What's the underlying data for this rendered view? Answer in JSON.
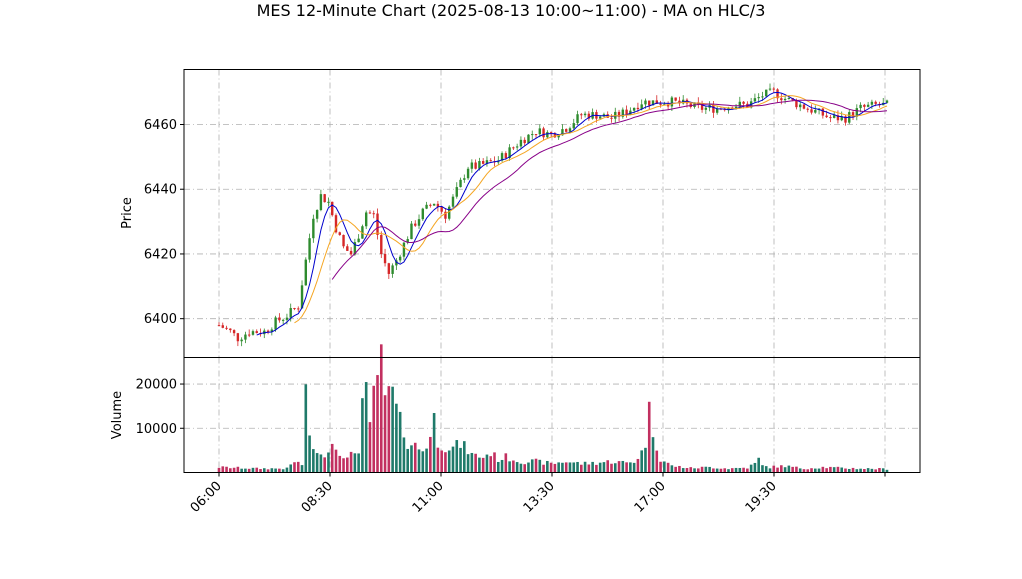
{
  "chart_data": {
    "type": "candlestick",
    "title": "MES 12-Minute Chart (2025-08-13 10:00~11:00) - MA on HLC/3",
    "price_panel": {
      "ylabel": "Price",
      "ylim": [
        6388,
        6477
      ],
      "yticks": [
        "6400",
        "6420",
        "6440",
        "6460"
      ],
      "grid": true
    },
    "volume_panel": {
      "ylabel": "Volume",
      "ylim": [
        0,
        26000
      ],
      "yticks": [
        "10000",
        "20000"
      ],
      "grid": true
    },
    "x_axis": {
      "tick_labels": [
        "06:00",
        "08:30",
        "11:00",
        "13:30",
        "17:00",
        "19:30",
        ""
      ],
      "tick_rotation": 45
    },
    "price_anchors": [
      [
        0,
        6398
      ],
      [
        3,
        6396
      ],
      [
        5,
        6394
      ],
      [
        8,
        6396
      ],
      [
        12,
        6396
      ],
      [
        15,
        6399
      ],
      [
        18,
        6401
      ],
      [
        21,
        6404
      ],
      [
        23,
        6418
      ],
      [
        25,
        6432
      ],
      [
        27,
        6438
      ],
      [
        29,
        6436
      ],
      [
        31,
        6428
      ],
      [
        33,
        6422
      ],
      [
        35,
        6420
      ],
      [
        37,
        6426
      ],
      [
        39,
        6433
      ],
      [
        41,
        6432
      ],
      [
        43,
        6420
      ],
      [
        45,
        6414
      ],
      [
        47,
        6418
      ],
      [
        49,
        6423
      ],
      [
        51,
        6428
      ],
      [
        54,
        6433
      ],
      [
        57,
        6436
      ],
      [
        60,
        6432
      ],
      [
        62,
        6437
      ],
      [
        64,
        6442
      ],
      [
        66,
        6447
      ],
      [
        68,
        6447
      ],
      [
        71,
        6448
      ],
      [
        74,
        6449
      ],
      [
        77,
        6452
      ],
      [
        80,
        6455
      ],
      [
        84,
        6458
      ],
      [
        88,
        6457
      ],
      [
        92,
        6459
      ],
      [
        96,
        6463
      ],
      [
        100,
        6463
      ],
      [
        104,
        6462
      ],
      [
        108,
        6464
      ],
      [
        112,
        6467
      ],
      [
        116,
        6467
      ],
      [
        120,
        6467
      ],
      [
        124,
        6466
      ],
      [
        128,
        6465
      ],
      [
        132,
        6465
      ],
      [
        136,
        6466
      ],
      [
        140,
        6466
      ],
      [
        144,
        6469
      ],
      [
        147,
        6470
      ],
      [
        150,
        6468
      ],
      [
        154,
        6466
      ],
      [
        158,
        6464
      ],
      [
        162,
        6462
      ],
      [
        166,
        6462
      ],
      [
        170,
        6465
      ],
      [
        174,
        6466
      ],
      [
        177,
        6466
      ]
    ],
    "volume_anchors": [
      [
        0,
        1200
      ],
      [
        10,
        900
      ],
      [
        18,
        900
      ],
      [
        20,
        2500
      ],
      [
        22,
        1800
      ],
      [
        23,
        16000
      ],
      [
        24,
        8500
      ],
      [
        25,
        6000
      ],
      [
        26,
        4000
      ],
      [
        27,
        3500
      ],
      [
        30,
        6500
      ],
      [
        32,
        5000
      ],
      [
        34,
        3000
      ],
      [
        37,
        5500
      ],
      [
        38,
        16000
      ],
      [
        39,
        17000
      ],
      [
        40,
        9500
      ],
      [
        41,
        18000
      ],
      [
        42,
        23000
      ],
      [
        43,
        24000
      ],
      [
        44,
        15000
      ],
      [
        45,
        19000
      ],
      [
        46,
        17000
      ],
      [
        47,
        14000
      ],
      [
        48,
        11000
      ],
      [
        49,
        9500
      ],
      [
        50,
        7000
      ],
      [
        52,
        6000
      ],
      [
        54,
        5000
      ],
      [
        55,
        6500
      ],
      [
        56,
        8000
      ],
      [
        57,
        12000
      ],
      [
        58,
        7000
      ],
      [
        60,
        6000
      ],
      [
        62,
        5500
      ],
      [
        64,
        6500
      ],
      [
        66,
        5000
      ],
      [
        67,
        4000
      ],
      [
        70,
        3500
      ],
      [
        72,
        4500
      ],
      [
        74,
        3000
      ],
      [
        76,
        3500
      ],
      [
        80,
        2500
      ],
      [
        84,
        2500
      ],
      [
        88,
        2000
      ],
      [
        92,
        2500
      ],
      [
        96,
        2000
      ],
      [
        100,
        2200
      ],
      [
        104,
        2500
      ],
      [
        108,
        2200
      ],
      [
        110,
        2500
      ],
      [
        112,
        4500
      ],
      [
        113,
        7000
      ],
      [
        114,
        13500
      ],
      [
        115,
        9500
      ],
      [
        116,
        6500
      ],
      [
        117,
        3000
      ],
      [
        118,
        2500
      ],
      [
        120,
        1500
      ],
      [
        125,
        1000
      ],
      [
        130,
        1200
      ],
      [
        135,
        900
      ],
      [
        140,
        1100
      ],
      [
        142,
        2000
      ],
      [
        143,
        3000
      ],
      [
        144,
        1500
      ],
      [
        146,
        1200
      ],
      [
        150,
        1500
      ],
      [
        152,
        1200
      ],
      [
        155,
        900
      ],
      [
        160,
        1200
      ],
      [
        165,
        1000
      ],
      [
        170,
        900
      ],
      [
        177,
        800
      ]
    ],
    "series": [
      {
        "role": "moving-average-fast",
        "color": "#0000cc"
      },
      {
        "role": "moving-average-mid",
        "color": "#f5a623"
      },
      {
        "role": "moving-average-slow",
        "color": "#880088"
      }
    ],
    "colors": {
      "up": "#2e8b2e",
      "down": "#d62728",
      "volume_up": "#1f7a6a",
      "volume_down": "#c23060"
    }
  }
}
